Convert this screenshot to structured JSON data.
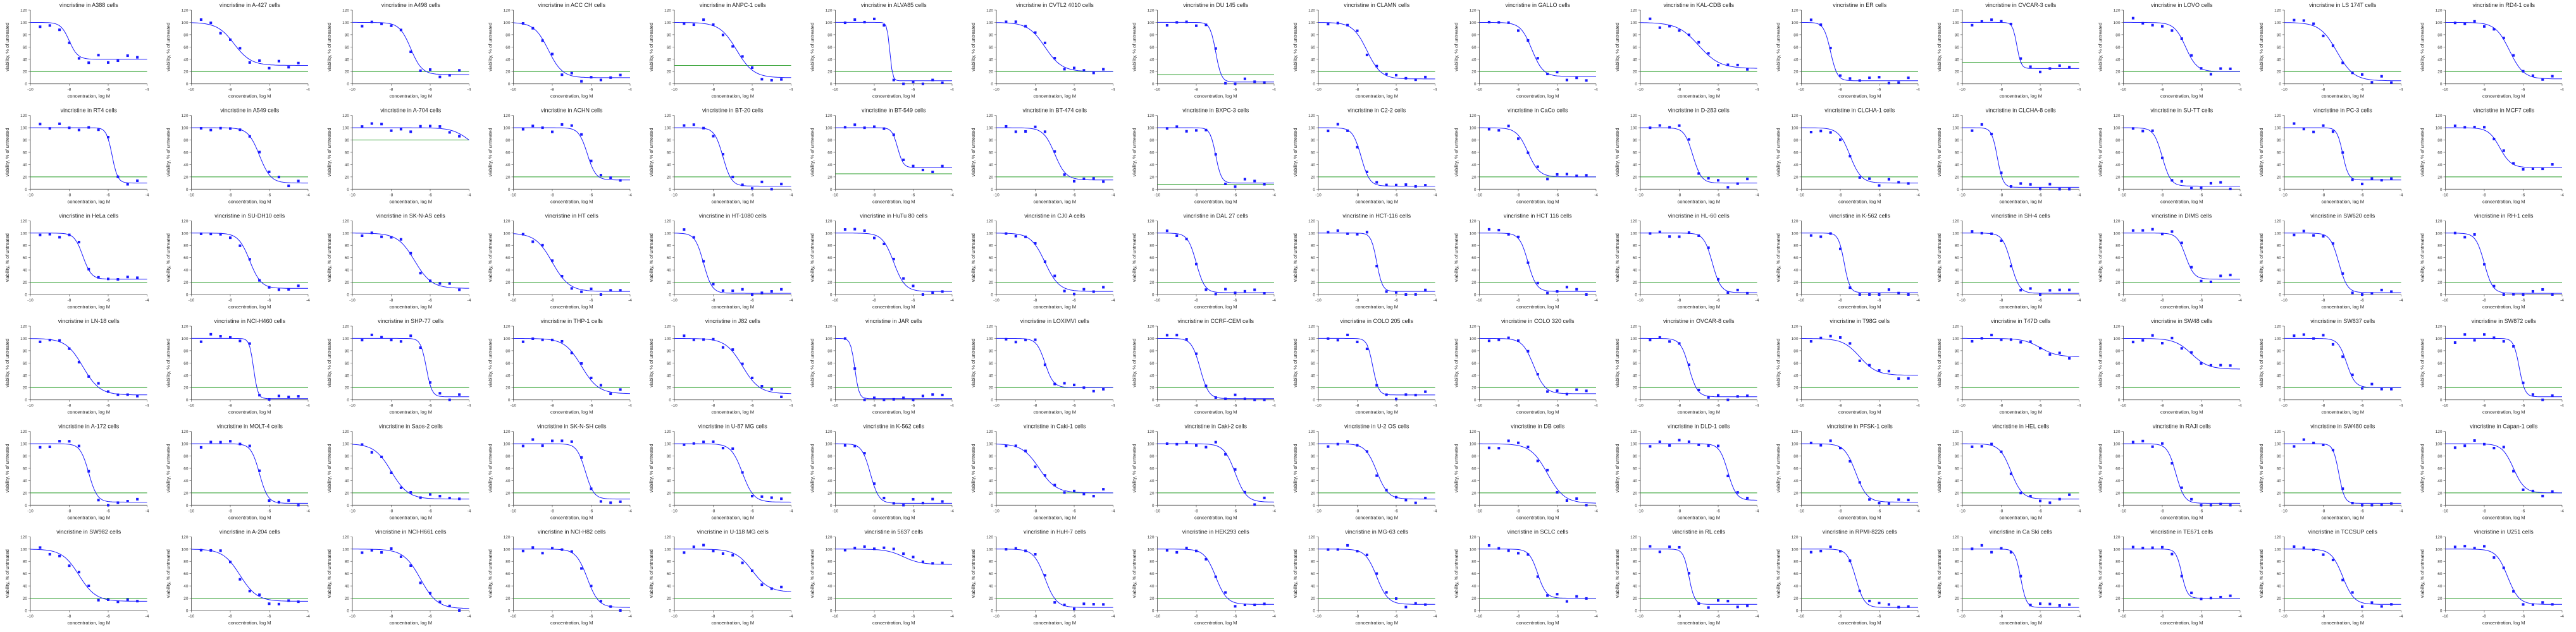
{
  "figure": {
    "background": "#ffffff",
    "curve_color": "#1a1aff",
    "point_color": "#1a1aff",
    "reference_color": "#2a9d2a",
    "axis_color": "#444444"
  },
  "chart_data": {
    "type": "scatter",
    "layout": "grid",
    "rows": 6,
    "cols": 16,
    "xlabel": "concentration, log M",
    "ylabel": "viability, % of untreated",
    "xlim": [
      -10,
      -4
    ],
    "ylim": [
      0,
      120
    ],
    "yticks": [
      0,
      20,
      40,
      60,
      80,
      100,
      120
    ],
    "xticks": [
      -10,
      -8,
      -6,
      -4
    ],
    "reference_line_y": 20,
    "x": [
      -9.5,
      -9,
      -8.5,
      -8,
      -7.5,
      -7,
      -6.5,
      -6,
      -5.5,
      -5,
      -4.5
    ],
    "panels": [
      {
        "title": "vincristine in A388 cells",
        "logIC50": -8.0,
        "bottom": 40,
        "hill": 2.0,
        "ref": 20
      },
      {
        "title": "vincristine in A-427 cells",
        "logIC50": -7.8,
        "bottom": 30,
        "hill": 1.0,
        "ref": 20
      },
      {
        "title": "vincristine in A498 cells",
        "logIC50": -7.0,
        "bottom": 15,
        "hill": 1.5,
        "ref": 20
      },
      {
        "title": "vincristine in ACC CH cells",
        "logIC50": -8.2,
        "bottom": 10,
        "hill": 1.2,
        "ref": 20
      },
      {
        "title": "vincristine in ANPC-1 cells",
        "logIC50": -6.8,
        "bottom": 10,
        "hill": 1.0,
        "ref": 30
      },
      {
        "title": "vincristine in ALVA85 cells",
        "logIC50": -7.2,
        "bottom": 5,
        "hill": 6.0,
        "ref": 20
      },
      {
        "title": "vincristine in CVTL2 4010 cells",
        "logIC50": -7.5,
        "bottom": 20,
        "hill": 1.0,
        "ref": 20
      },
      {
        "title": "vincristine in DU 145 cells",
        "logIC50": -7.0,
        "bottom": 3,
        "hill": 3.0,
        "ref": 15
      },
      {
        "title": "vincristine in CLAMN cells",
        "logIC50": -7.5,
        "bottom": 8,
        "hill": 1.2,
        "ref": 20
      },
      {
        "title": "vincristine in GALLO cells",
        "logIC50": -7.3,
        "bottom": 12,
        "hill": 1.5,
        "ref": 20
      },
      {
        "title": "vincristine in KAL-CDB cells",
        "logIC50": -7.0,
        "bottom": 25,
        "hill": 0.8,
        "ref": 20
      },
      {
        "title": "vincristine in ER cells",
        "logIC50": -8.5,
        "bottom": 5,
        "hill": 2.5,
        "ref": 20
      },
      {
        "title": "vincristine in CVCAR-3 cells",
        "logIC50": -7.2,
        "bottom": 25,
        "hill": 4.0,
        "ref": 35
      },
      {
        "title": "vincristine in LOVO cells",
        "logIC50": -6.8,
        "bottom": 20,
        "hill": 1.5,
        "ref": 20
      },
      {
        "title": "vincristine in LS 174T cells",
        "logIC50": -7.3,
        "bottom": 5,
        "hill": 1.0,
        "ref": 20
      },
      {
        "title": "vincristine in RD4-1 cells",
        "logIC50": -6.7,
        "bottom": 8,
        "hill": 1.2,
        "ref": 20
      },
      {
        "title": "vincristine in RT4 cells",
        "logIC50": -5.8,
        "bottom": 10,
        "hill": 3.0,
        "ref": 20
      },
      {
        "title": "vincristine in A549 cells",
        "logIC50": -6.5,
        "bottom": 10,
        "hill": 1.5,
        "ref": 20
      },
      {
        "title": "vincristine in A-704 cells",
        "logIC50": -4.0,
        "bottom": 60,
        "hill": 1.0,
        "ref": 80
      },
      {
        "title": "vincristine in ACHN cells",
        "logIC50": -6.2,
        "bottom": 15,
        "hill": 2.0,
        "ref": 20
      },
      {
        "title": "vincristine in BT-20 cells",
        "logIC50": -7.5,
        "bottom": 5,
        "hill": 2.0,
        "ref": 20
      },
      {
        "title": "vincristine in BT-549 cells",
        "logIC50": -6.8,
        "bottom": 35,
        "hill": 3.0,
        "ref": 25
      },
      {
        "title": "vincristine in BT-474 cells",
        "logIC50": -7.0,
        "bottom": 15,
        "hill": 1.5,
        "ref": 20
      },
      {
        "title": "vincristine in BXPC-3 cells",
        "logIC50": -7.0,
        "bottom": 10,
        "hill": 3.0,
        "ref": 8
      },
      {
        "title": "vincristine in C2-2 cells",
        "logIC50": -7.8,
        "bottom": 5,
        "hill": 2.0,
        "ref": 20
      },
      {
        "title": "vincristine in CaCo cells",
        "logIC50": -7.5,
        "bottom": 20,
        "hill": 1.5,
        "ref": 20
      },
      {
        "title": "vincristine in D-283 cells",
        "logIC50": -7.3,
        "bottom": 10,
        "hill": 2.0,
        "ref": 20
      },
      {
        "title": "vincristine in CLCHA-1 cells",
        "logIC50": -7.5,
        "bottom": 10,
        "hill": 1.5,
        "ref": 20
      },
      {
        "title": "vincristine in CLCHA-8 cells",
        "logIC50": -8.2,
        "bottom": 3,
        "hill": 3.0,
        "ref": 20
      },
      {
        "title": "vincristine in SU-TT cells",
        "logIC50": -8.0,
        "bottom": 5,
        "hill": 2.0,
        "ref": 20
      },
      {
        "title": "vincristine in PC-3 cells",
        "logIC50": -7.0,
        "bottom": 15,
        "hill": 3.0,
        "ref": 20
      },
      {
        "title": "vincristine in MCF7 cells",
        "logIC50": -7.2,
        "bottom": 35,
        "hill": 1.5,
        "ref": 20
      },
      {
        "title": "vincristine in HeLa cells",
        "logIC50": -7.3,
        "bottom": 25,
        "hill": 2.0,
        "ref": 20
      },
      {
        "title": "vincristine in SU-DH10 cells",
        "logIC50": -7.0,
        "bottom": 10,
        "hill": 1.5,
        "ref": 20
      },
      {
        "title": "vincristine in SK-N-AS cells",
        "logIC50": -6.8,
        "bottom": 10,
        "hill": 1.0,
        "ref": 20
      },
      {
        "title": "vincristine in HT cells",
        "logIC50": -8.0,
        "bottom": 5,
        "hill": 1.0,
        "ref": 20
      },
      {
        "title": "vincristine in HT-1080 cells",
        "logIC50": -8.5,
        "bottom": 2,
        "hill": 2.0,
        "ref": 20
      },
      {
        "title": "vincristine in HuTu 80 cells",
        "logIC50": -7.0,
        "bottom": 5,
        "hill": 1.5,
        "ref": 20
      },
      {
        "title": "vincristine in CJ0 A cells",
        "logIC50": -7.5,
        "bottom": 5,
        "hill": 1.2,
        "ref": 20
      },
      {
        "title": "vincristine in DAL 27 cells",
        "logIC50": -8.0,
        "bottom": 3,
        "hill": 2.0,
        "ref": 20
      },
      {
        "title": "vincristine in HCT-116 cells",
        "logIC50": -7.0,
        "bottom": 5,
        "hill": 3.0,
        "ref": 20
      },
      {
        "title": "vincristine in HCT 116 cells",
        "logIC50": -7.5,
        "bottom": 5,
        "hill": 2.0,
        "ref": 20
      },
      {
        "title": "vincristine in HL-60 cells",
        "logIC50": -6.3,
        "bottom": 3,
        "hill": 2.0,
        "ref": 20
      },
      {
        "title": "vincristine in K-562 cells",
        "logIC50": -7.8,
        "bottom": 3,
        "hill": 3.0,
        "ref": 20
      },
      {
        "title": "vincristine in SH-4 cells",
        "logIC50": -7.5,
        "bottom": 2,
        "hill": 2.0,
        "ref": 20
      },
      {
        "title": "vincristine in DIMS cells",
        "logIC50": -6.8,
        "bottom": 25,
        "hill": 2.0,
        "ref": 20
      },
      {
        "title": "vincristine in SW620 cells",
        "logIC50": -7.2,
        "bottom": 3,
        "hill": 2.0,
        "ref": 20
      },
      {
        "title": "vincristine in RH-1 cells",
        "logIC50": -8.0,
        "bottom": 2,
        "hill": 2.0,
        "ref": 20
      },
      {
        "title": "vincristine in LN-18 cells",
        "logIC50": -7.3,
        "bottom": 8,
        "hill": 1.0,
        "ref": 20
      },
      {
        "title": "vincristine in NCI-H460 cells",
        "logIC50": -6.8,
        "bottom": 2,
        "hill": 4.0,
        "ref": 20
      },
      {
        "title": "vincristine in SHP-77 cells",
        "logIC50": -6.2,
        "bottom": 5,
        "hill": 3.0,
        "ref": 20
      },
      {
        "title": "vincristine in THP-1 cells",
        "logIC50": -6.5,
        "bottom": 10,
        "hill": 1.0,
        "ref": 20
      },
      {
        "title": "vincristine in J82 cells",
        "logIC50": -6.5,
        "bottom": 10,
        "hill": 1.0,
        "ref": 20
      },
      {
        "title": "vincristine in JAR cells",
        "logIC50": -9.0,
        "bottom": 2,
        "hill": 4.0,
        "ref": 20
      },
      {
        "title": "vincristine in LOXIMVI cells",
        "logIC50": -7.5,
        "bottom": 20,
        "hill": 2.0,
        "ref": 20
      },
      {
        "title": "vincristine in CCRF-CEM cells",
        "logIC50": -7.8,
        "bottom": 2,
        "hill": 2.0,
        "ref": 20
      },
      {
        "title": "vincristine in COLO 205 cells",
        "logIC50": -7.2,
        "bottom": 8,
        "hill": 3.0,
        "ref": 20
      },
      {
        "title": "vincristine in COLO 320 cells",
        "logIC50": -7.2,
        "bottom": 10,
        "hill": 1.5,
        "ref": 20
      },
      {
        "title": "vincristine in OVCAR-8 cells",
        "logIC50": -7.5,
        "bottom": 5,
        "hill": 2.0,
        "ref": 20
      },
      {
        "title": "vincristine in T98G cells",
        "logIC50": -7.0,
        "bottom": 40,
        "hill": 1.0,
        "ref": 20
      },
      {
        "title": "vincristine in T47D cells",
        "logIC50": -6.0,
        "bottom": 70,
        "hill": 1.0,
        "ref": 20
      },
      {
        "title": "vincristine in SW48 cells",
        "logIC50": -6.5,
        "bottom": 50,
        "hill": 1.0,
        "ref": 20
      },
      {
        "title": "vincristine in SW837 cells",
        "logIC50": -6.8,
        "bottom": 20,
        "hill": 2.0,
        "ref": 20
      },
      {
        "title": "vincristine in SW872 cells",
        "logIC50": -6.2,
        "bottom": 5,
        "hill": 3.0,
        "ref": 20
      },
      {
        "title": "vincristine in A-172 cells",
        "logIC50": -7.0,
        "bottom": 5,
        "hill": 2.0,
        "ref": 20
      },
      {
        "title": "vincristine in MOLT-4 cells",
        "logIC50": -6.5,
        "bottom": 3,
        "hill": 2.0,
        "ref": 20
      },
      {
        "title": "vincristine in Saos-2 cells",
        "logIC50": -8.0,
        "bottom": 10,
        "hill": 1.0,
        "ref": 20
      },
      {
        "title": "vincristine in SK-N-SH cells",
        "logIC50": -6.3,
        "bottom": 10,
        "hill": 2.0,
        "ref": 20
      },
      {
        "title": "vincristine in U-87 MG cells",
        "logIC50": -6.5,
        "bottom": 5,
        "hill": 1.5,
        "ref": 20
      },
      {
        "title": "vincristine in K-562 cells",
        "logIC50": -8.2,
        "bottom": 3,
        "hill": 2.0,
        "ref": 20
      },
      {
        "title": "vincristine in Caki-1 cells",
        "logIC50": -7.8,
        "bottom": 20,
        "hill": 1.0,
        "ref": 20
      },
      {
        "title": "vincristine in Caki-2 cells",
        "logIC50": -6.0,
        "bottom": 5,
        "hill": 1.5,
        "ref": 20
      },
      {
        "title": "vincristine in U-2 OS cells",
        "logIC50": -7.0,
        "bottom": 10,
        "hill": 1.5,
        "ref": 20
      },
      {
        "title": "vincristine in DB cells",
        "logIC50": -6.5,
        "bottom": 3,
        "hill": 1.0,
        "ref": 20
      },
      {
        "title": "vincristine in DLD-1 cells",
        "logIC50": -5.5,
        "bottom": 8,
        "hill": 2.0,
        "ref": 20
      },
      {
        "title": "vincristine in PFSK-1 cells",
        "logIC50": -7.2,
        "bottom": 5,
        "hill": 1.5,
        "ref": 20
      },
      {
        "title": "vincristine in HEL cells",
        "logIC50": -7.5,
        "bottom": 10,
        "hill": 1.5,
        "ref": 20
      },
      {
        "title": "vincristine in RAJI cells",
        "logIC50": -7.3,
        "bottom": 3,
        "hill": 2.0,
        "ref": 20
      },
      {
        "title": "vincristine in SW480 cells",
        "logIC50": -7.2,
        "bottom": 3,
        "hill": 3.0,
        "ref": 20
      },
      {
        "title": "vincristine in Capan-1 cells",
        "logIC50": -6.5,
        "bottom": 20,
        "hill": 1.5,
        "ref": 20
      },
      {
        "title": "vincristine in SW982 cells",
        "logIC50": -7.5,
        "bottom": 15,
        "hill": 1.0,
        "ref": 20
      },
      {
        "title": "vincristine in A-204 cells",
        "logIC50": -7.5,
        "bottom": 15,
        "hill": 1.0,
        "ref": 20
      },
      {
        "title": "vincristine in NCI-H661 cells",
        "logIC50": -6.5,
        "bottom": 3,
        "hill": 1.0,
        "ref": 20
      },
      {
        "title": "vincristine in NCI-H82 cells",
        "logIC50": -6.2,
        "bottom": 5,
        "hill": 1.5,
        "ref": 20
      },
      {
        "title": "vincristine in U-118 MG cells",
        "logIC50": -6.0,
        "bottom": 30,
        "hill": 1.0,
        "ref": 20
      },
      {
        "title": "vincristine in 5637 cells",
        "logIC50": -6.5,
        "bottom": 75,
        "hill": 1.0,
        "ref": 20
      },
      {
        "title": "vincristine in HuH-7 cells",
        "logIC50": -7.5,
        "bottom": 5,
        "hill": 1.5,
        "ref": 20
      },
      {
        "title": "vincristine in HEK293 cells",
        "logIC50": -7.0,
        "bottom": 10,
        "hill": 1.5,
        "ref": 20
      },
      {
        "title": "vincristine in MG-63 cells",
        "logIC50": -7.0,
        "bottom": 10,
        "hill": 1.5,
        "ref": 20
      },
      {
        "title": "vincristine in SCLC cells",
        "logIC50": -7.0,
        "bottom": 20,
        "hill": 2.0,
        "ref": 20
      },
      {
        "title": "vincristine in RL cells",
        "logIC50": -7.5,
        "bottom": 10,
        "hill": 3.0,
        "ref": 20
      },
      {
        "title": "vincristine in RPMI-8226 cells",
        "logIC50": -7.2,
        "bottom": 5,
        "hill": 2.0,
        "ref": 20
      },
      {
        "title": "vincristine in Ca Ski cells",
        "logIC50": -7.0,
        "bottom": 5,
        "hill": 3.0,
        "ref": 20
      },
      {
        "title": "vincristine in TE671 cells",
        "logIC50": -7.0,
        "bottom": 20,
        "hill": 3.0,
        "ref": 20
      },
      {
        "title": "vincristine in TCCSUP cells",
        "logIC50": -7.0,
        "bottom": 10,
        "hill": 1.5,
        "ref": 20
      },
      {
        "title": "vincristine in U251 cells",
        "logIC50": -6.8,
        "bottom": 10,
        "hill": 1.5,
        "ref": 20
      }
    ]
  }
}
